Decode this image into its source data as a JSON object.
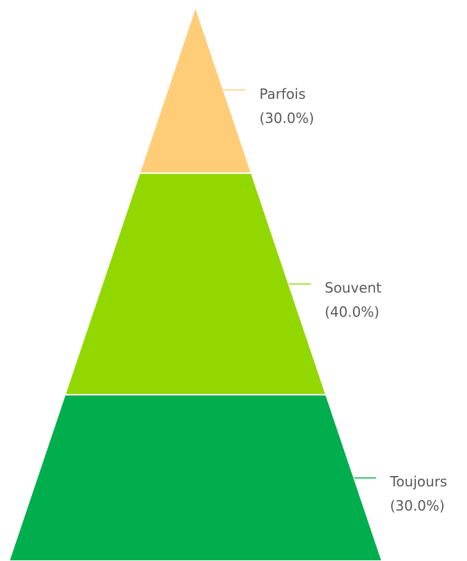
{
  "chart_data": {
    "type": "pyramid",
    "categories": [
      "Parfois",
      "Souvent",
      "Toujours"
    ],
    "values": [
      30,
      40,
      30
    ],
    "value_labels": [
      "(30.0%)",
      "(40.0%)",
      "(30.0%)"
    ],
    "colors": [
      "#ffcc77",
      "#92d800",
      "#00ae4e"
    ]
  }
}
